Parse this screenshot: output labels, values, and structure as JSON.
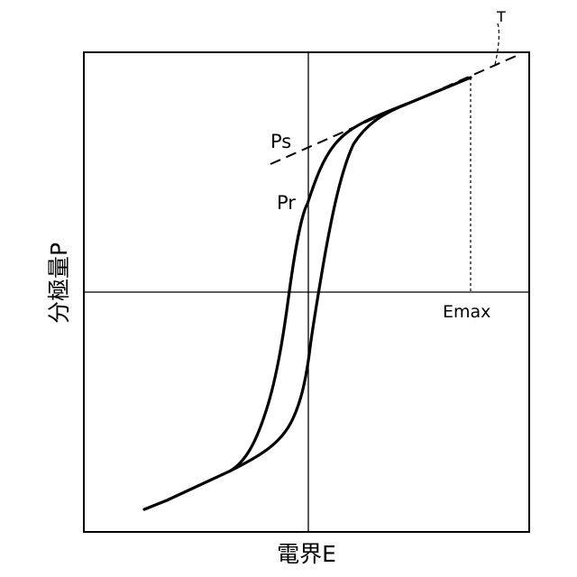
{
  "diagram": {
    "title": "",
    "x_axis_label": "電界E",
    "y_axis_label": "分極量P",
    "labels": {
      "ps": "Ps",
      "pr": "Pr",
      "emax": "Emax",
      "tangent": "T"
    },
    "stroke_color": "#000000",
    "background_color": "#ffffff"
  }
}
